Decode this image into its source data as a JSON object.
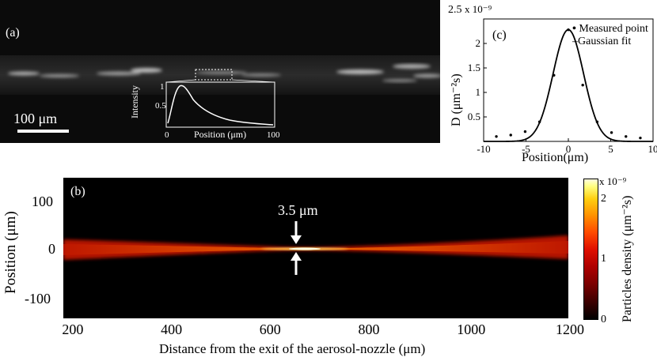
{
  "panel_a": {
    "label": "(a)",
    "scalebar_label": "100 μm",
    "inset": {
      "ylabel": "Intensity",
      "xlabel": "Position (μm)",
      "x_ticks": [
        "0",
        "100"
      ],
      "y_ticks": [
        "0.5",
        "1"
      ]
    }
  },
  "panel_b": {
    "label": "(b)",
    "annotation": "3.5 μm",
    "ylabel": "Position (μm)",
    "xlabel": "Distance from the exit of the aerosol-nozzle (μm)",
    "x_ticks": [
      "200",
      "400",
      "600",
      "800",
      "1000",
      "1200"
    ],
    "y_ticks": [
      "100",
      "0",
      "-100"
    ],
    "colorbar": {
      "label": "Particles density (μm⁻²s)",
      "scale": "x 10⁻⁹",
      "ticks": [
        "2",
        "1",
        "0"
      ]
    }
  },
  "panel_c": {
    "label": "(c)",
    "scale": "x 10⁻⁹",
    "scale_mantissa": "2.5",
    "ylabel": "D (μm⁻²s)",
    "xlabel": "Position(μm)",
    "legend": [
      "Measured point",
      "Gaussian fit"
    ]
  },
  "chart_data": [
    {
      "type": "scatter",
      "panel": "c",
      "xlabel": "Position(μm)",
      "ylabel": "D (μm⁻²s)",
      "x_ticks": [
        "-10",
        "-5",
        "0",
        "5",
        "10"
      ],
      "y_ticks": [
        "0.5",
        "1",
        "1.5",
        "2"
      ],
      "xlim": [
        -10,
        10
      ],
      "ylim": [
        0,
        2.5
      ],
      "series": [
        {
          "name": "Measured point",
          "x": [
            -8.5,
            -6.8,
            -5.1,
            -3.4,
            -1.7,
            0,
            1.7,
            3.4,
            5.1,
            6.8,
            8.5
          ],
          "y": [
            0.1,
            0.13,
            0.2,
            0.4,
            1.35,
            2.28,
            1.15,
            0.4,
            0.18,
            0.1,
            0.07
          ]
        },
        {
          "name": "Gaussian fit",
          "fit": {
            "amplitude": 2.28,
            "center": 0,
            "sigma": 1.8
          }
        }
      ],
      "legend_position": "top-right"
    }
  ]
}
